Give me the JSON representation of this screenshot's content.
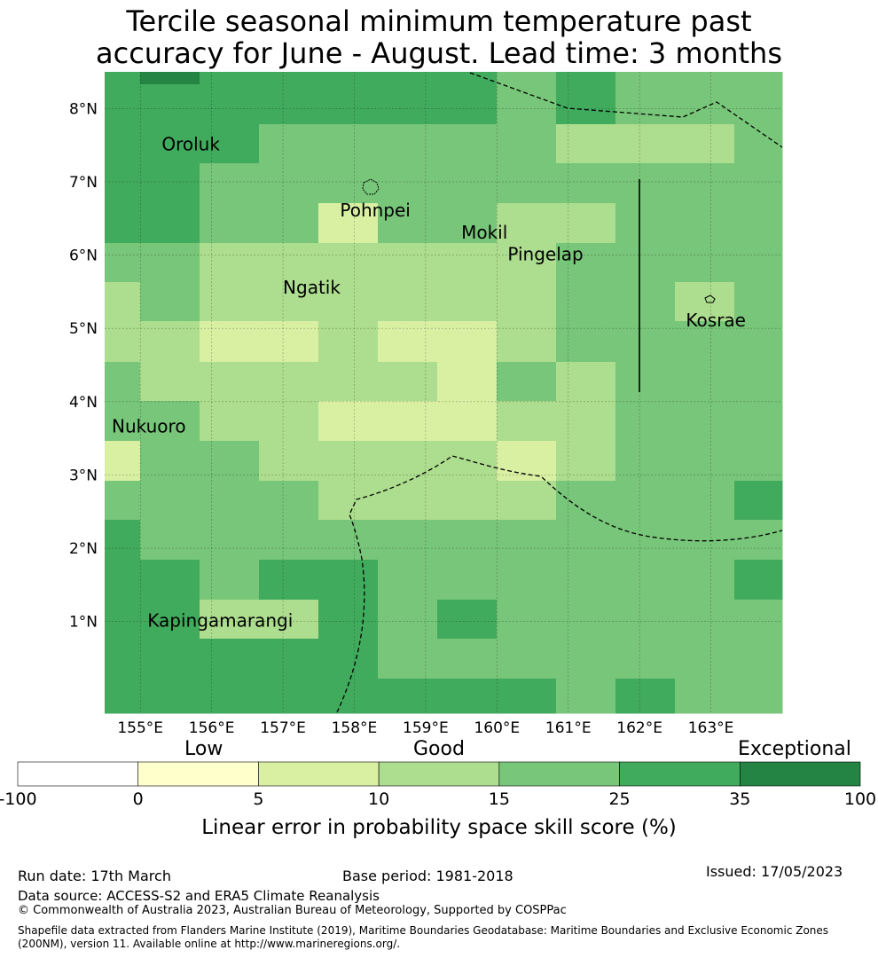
{
  "title_lines": [
    "Tercile seasonal minimum temperature past",
    "accuracy for June - August. Lead time: 3 months"
  ],
  "map": {
    "lon_range": [
      154.5,
      164
    ],
    "lat_range": [
      -0.25,
      8.5
    ],
    "lon_ticks": [
      {
        "value": 155,
        "label": "155°E"
      },
      {
        "value": 156,
        "label": "156°E"
      },
      {
        "value": 157,
        "label": "157°E"
      },
      {
        "value": 158,
        "label": "158°E"
      },
      {
        "value": 159,
        "label": "159°E"
      },
      {
        "value": 160,
        "label": "160°E"
      },
      {
        "value": 161,
        "label": "161°E"
      },
      {
        "value": 162,
        "label": "162°E"
      },
      {
        "value": 163,
        "label": "163°E"
      }
    ],
    "lat_ticks": [
      {
        "value": 1,
        "label": "1°N"
      },
      {
        "value": 2,
        "label": "2°N"
      },
      {
        "value": 3,
        "label": "3°N"
      },
      {
        "value": 4,
        "label": "4°N"
      },
      {
        "value": 5,
        "label": "5°N"
      },
      {
        "value": 6,
        "label": "6°N"
      },
      {
        "value": 7,
        "label": "7°N"
      },
      {
        "value": 8,
        "label": "8°N"
      }
    ],
    "grid": true,
    "places": [
      {
        "name": "Oroluk",
        "lon": 155.3,
        "lat": 7.5
      },
      {
        "name": "Pohnpei",
        "lon": 157.8,
        "lat": 6.6
      },
      {
        "name": "Mokil",
        "lon": 159.5,
        "lat": 6.3
      },
      {
        "name": "Pingelap",
        "lon": 160.15,
        "lat": 6.0
      },
      {
        "name": "Ngatik",
        "lon": 157.0,
        "lat": 5.55
      },
      {
        "name": "Kosrae",
        "lon": 162.65,
        "lat": 5.1
      },
      {
        "name": "Nukuoro",
        "lon": 154.6,
        "lat": 3.65
      },
      {
        "name": "Kapingamarangi",
        "lon": 155.1,
        "lat": 1.0
      }
    ]
  },
  "colorbar": {
    "categories": [
      "Low",
      "Good",
      "Exceptional"
    ],
    "ticks": [
      "-100",
      "0",
      "5",
      "10",
      "15",
      "25",
      "35",
      "100"
    ],
    "colors": [
      "#ffffff",
      "#ffffcc",
      "#d9f0a3",
      "#addd8e",
      "#78c679",
      "#41ab5d",
      "#238443"
    ],
    "label": "Linear error in probability space skill score (%)"
  },
  "footer": {
    "run_date": "Run date: 17th March",
    "base_period": "Base period: 1981-2018",
    "issued": "Issued: 17/05/2023",
    "data_source": "Data source: ACCESS-S2 and ERA5 Climate Reanalysis",
    "copyright": "© Commonwealth of Australia 2023, Australian Bureau of Meteorology, Supported by COSPPac",
    "shapefile_line1": "Shapefile data extracted from Flanders Marine Institute (2019), Maritime Boundaries Geodatabase: Maritime Boundaries and Exclusive Economic Zones",
    "shapefile_line2": "(200NM), version 11. Available online at http://www.marineregions.org/."
  }
}
